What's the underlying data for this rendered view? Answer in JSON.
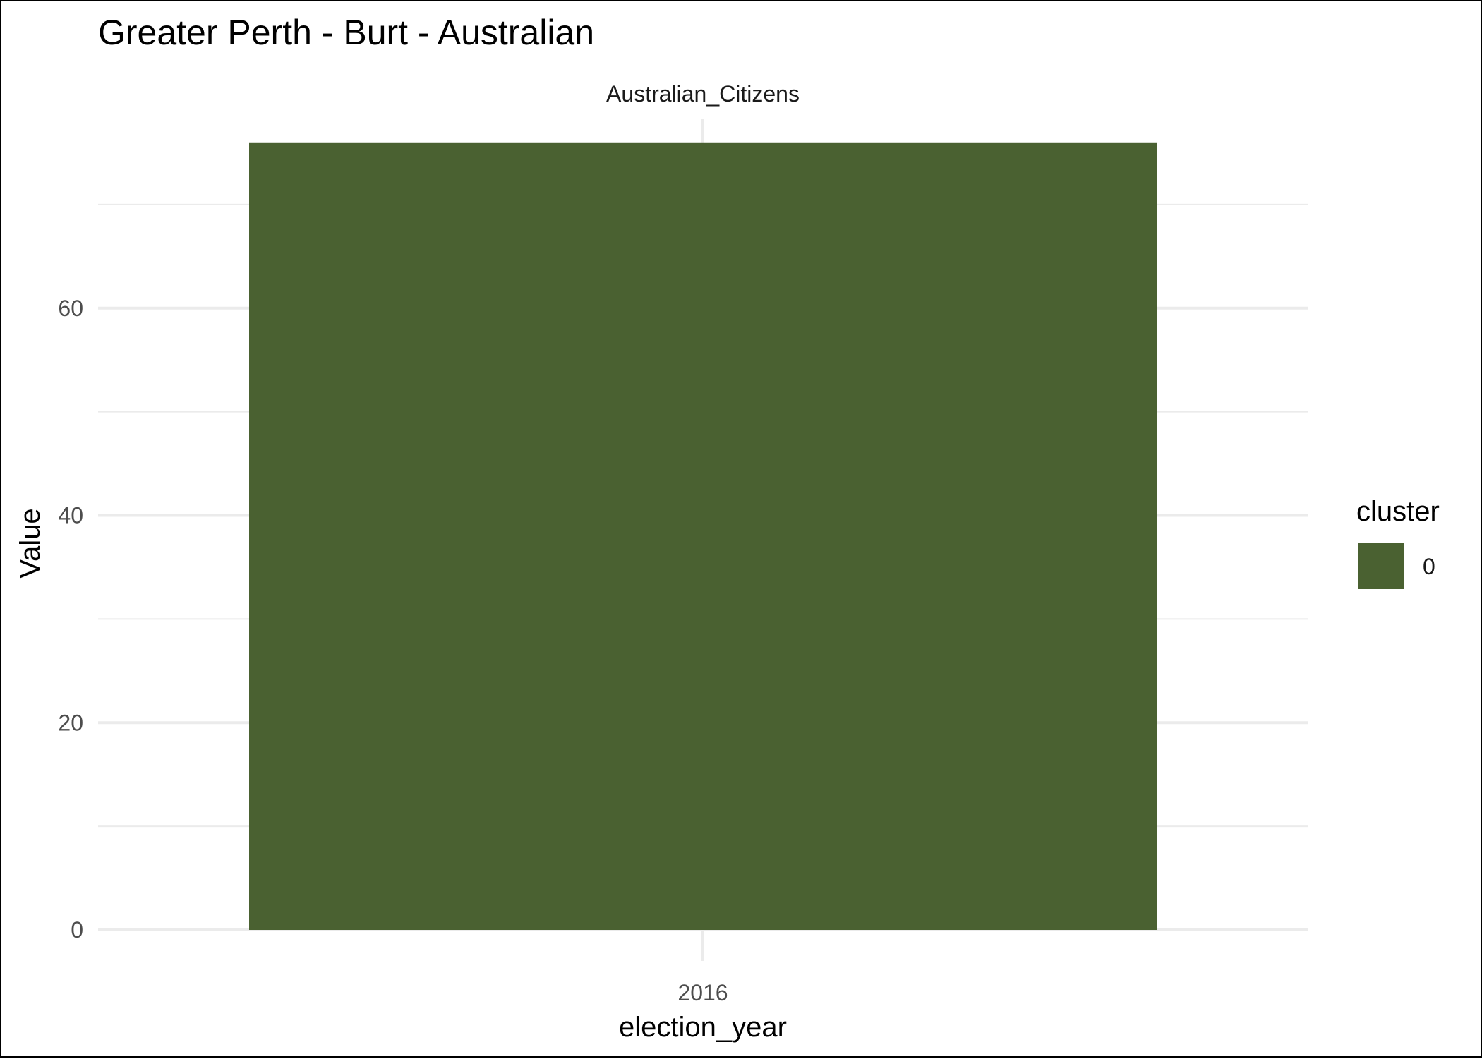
{
  "chart_data": {
    "type": "bar",
    "title": "Greater Perth - Burt - Australian",
    "facet_label": "Australian_Citizens",
    "xlabel": "election_year",
    "ylabel": "Value",
    "categories": [
      "2016"
    ],
    "series": [
      {
        "name": "0",
        "values": [
          76
        ],
        "color": "#4a6131"
      }
    ],
    "ylim": [
      0,
      78.3
    ],
    "yticks": [
      0,
      20,
      40,
      60
    ],
    "yminor": [
      10,
      30,
      50,
      70
    ],
    "grid": true,
    "legend": {
      "title": "cluster",
      "position": "right",
      "entries": [
        "0"
      ]
    }
  }
}
